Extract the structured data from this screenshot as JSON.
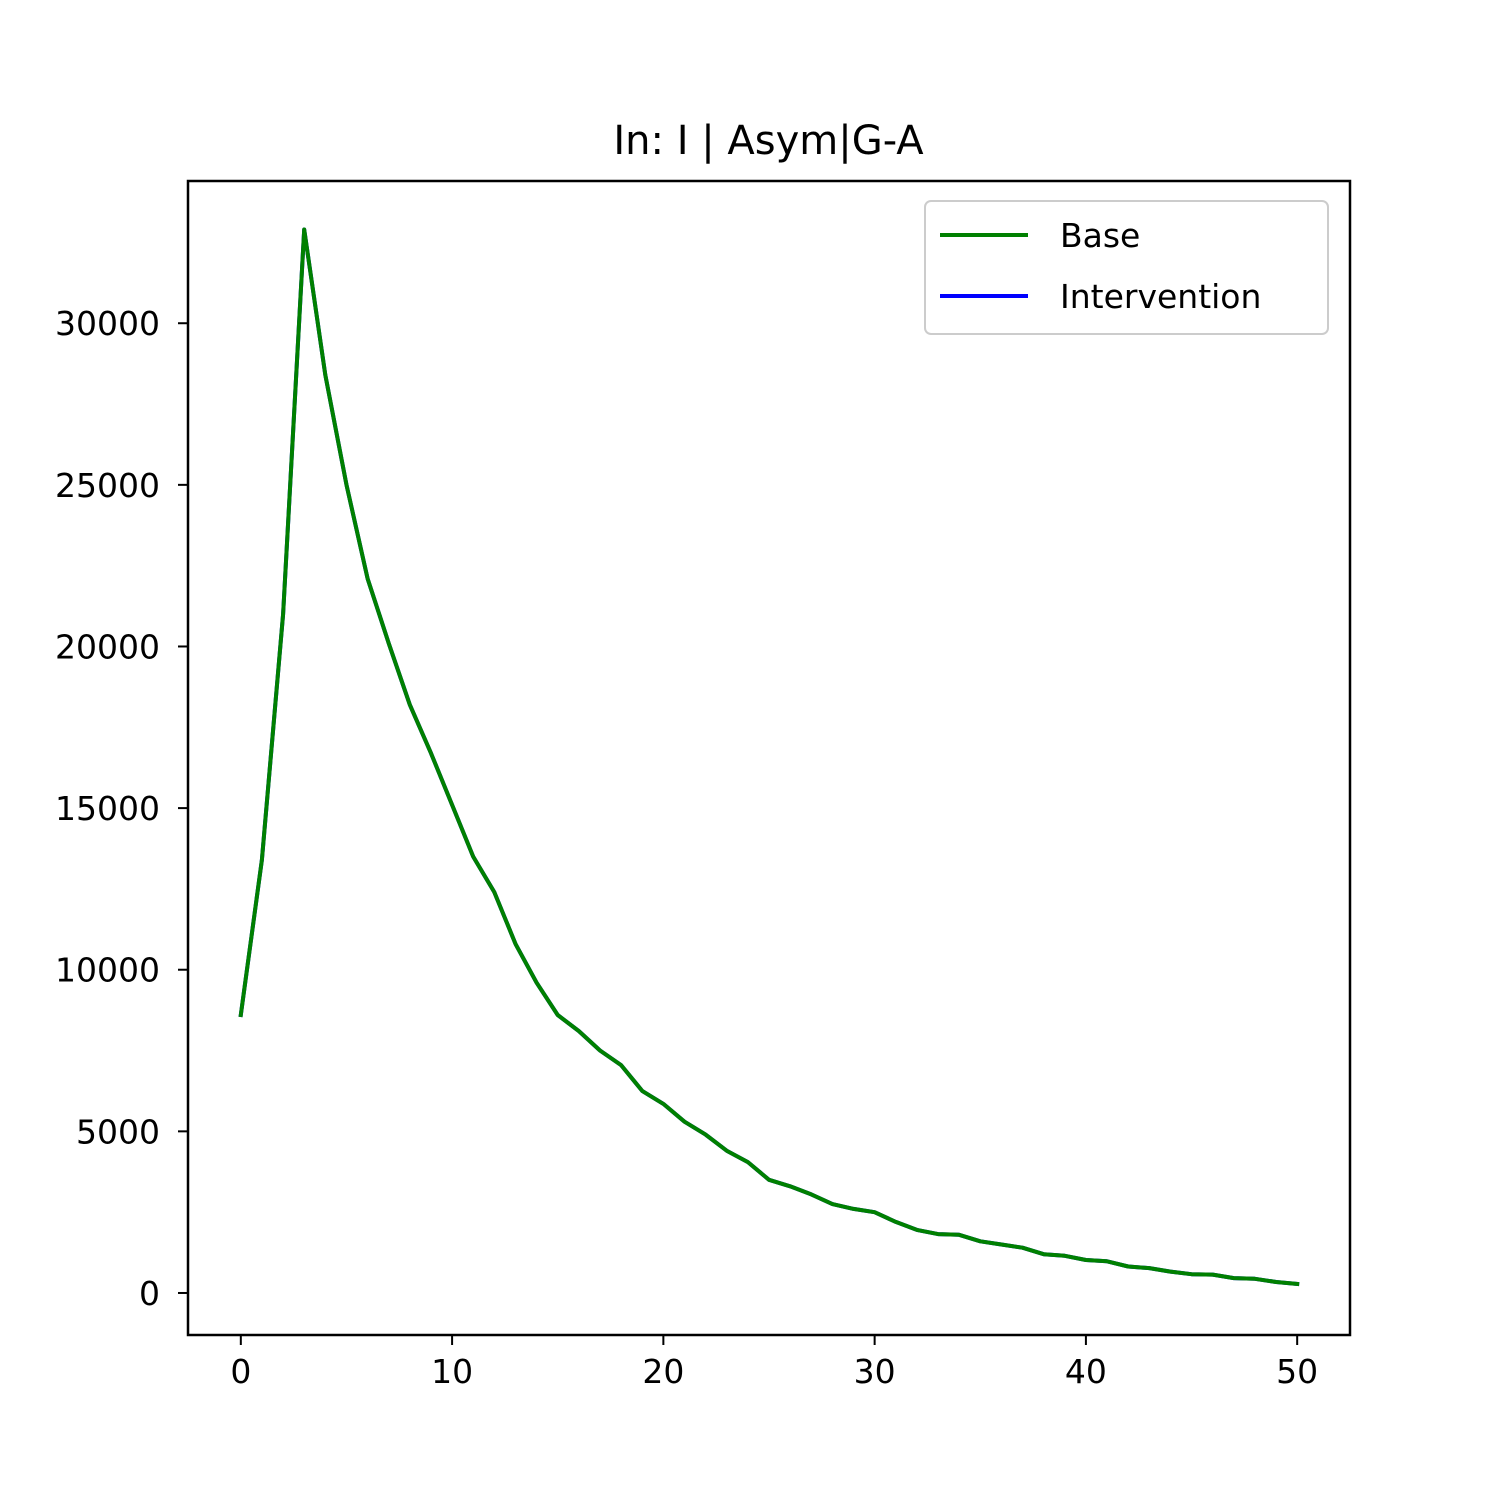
{
  "chart_data": {
    "type": "line",
    "title": "In: I | Asym|G-A",
    "xlabel": "",
    "ylabel": "",
    "xlim": [
      -2.5,
      52.5
    ],
    "ylim": [
      -1300,
      34400
    ],
    "x_ticks": [
      0,
      10,
      20,
      30,
      40,
      50
    ],
    "x_tick_labels": [
      "0",
      "10",
      "20",
      "30",
      "40",
      "50"
    ],
    "y_ticks": [
      0,
      5000,
      10000,
      15000,
      20000,
      25000,
      30000
    ],
    "y_tick_labels": [
      "0",
      "5000",
      "10000",
      "15000",
      "20000",
      "25000",
      "30000"
    ],
    "grid": false,
    "legend_position": "top-right",
    "x": [
      0,
      1,
      2,
      3,
      4,
      5,
      6,
      7,
      8,
      9,
      10,
      11,
      12,
      13,
      14,
      15,
      16,
      17,
      18,
      19,
      20,
      21,
      22,
      23,
      24,
      25,
      26,
      27,
      28,
      29,
      30,
      31,
      32,
      33,
      34,
      35,
      36,
      37,
      38,
      39,
      40,
      41,
      42,
      43,
      44,
      45,
      46,
      47,
      48,
      49,
      50
    ],
    "series": [
      {
        "name": "Base",
        "color": "#008000",
        "values": [
          8600,
          13400,
          21000,
          32900,
          28400,
          25000,
          22100,
          20100,
          18200,
          16700,
          15100,
          13500,
          12400,
          10800,
          9600,
          8600,
          8100,
          7500,
          7050,
          6250,
          5850,
          5300,
          4900,
          4400,
          4050,
          3500,
          3300,
          3050,
          2750,
          2600,
          2500,
          2200,
          1950,
          1820,
          1800,
          1600,
          1500,
          1400,
          1200,
          1150,
          1020,
          980,
          820,
          770,
          660,
          580,
          570,
          460,
          440,
          340,
          280
        ]
      },
      {
        "name": "Intervention",
        "color": "#0000ff",
        "values": [
          8600,
          13400,
          21000,
          32900,
          28400,
          25000,
          22100,
          20100,
          18200,
          16700,
          15100,
          13500,
          12400,
          10800,
          9600,
          8600,
          8100,
          7500,
          7050,
          6250,
          5850,
          5300,
          4900,
          4400,
          4050,
          3500,
          3300,
          3050,
          2750,
          2600,
          2500,
          2200,
          1950,
          1820,
          1800,
          1600,
          1500,
          1400,
          1200,
          1150,
          1020,
          980,
          820,
          770,
          660,
          580,
          570,
          460,
          440,
          340,
          280
        ]
      }
    ]
  }
}
